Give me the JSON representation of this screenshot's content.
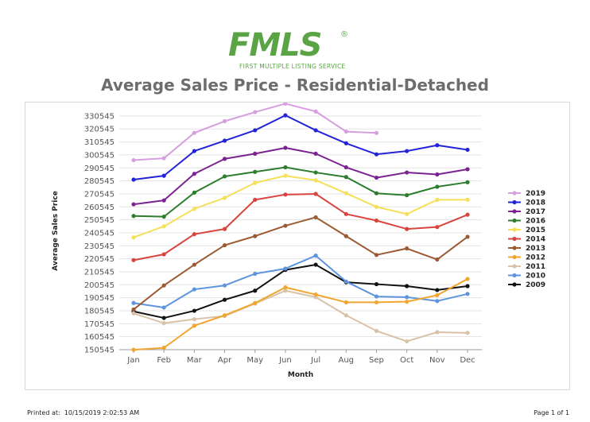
{
  "logo": {
    "text": "FMLS",
    "subtext": "FIRST MULTIPLE LISTING SERVICE",
    "registered": "®",
    "color": "#5ba445"
  },
  "page_title": "Average Sales Price - Residential-Detached",
  "footer": {
    "printed_label": "Printed at:",
    "printed_value": "10/15/2019 2:02:53 AM",
    "page": "Page 1 of 1"
  },
  "chart_data": {
    "type": "line",
    "title": "Average Sales Price - Residential-Detached",
    "xlabel": "Month",
    "ylabel": "Average Sales Price",
    "categories": [
      "Jan",
      "Feb",
      "Mar",
      "Apr",
      "May",
      "Jun",
      "Jul",
      "Aug",
      "Sep",
      "Oct",
      "Nov",
      "Dec"
    ],
    "yticks": [
      150545,
      160545,
      170545,
      180545,
      190545,
      200545,
      210545,
      220545,
      230545,
      240545,
      250545,
      260545,
      270545,
      280545,
      290545,
      300545,
      310545,
      320545,
      330545
    ],
    "ylim": [
      150545,
      333545
    ],
    "grid": true,
    "legend_position": "right",
    "series": [
      {
        "name": "2019",
        "color": "#d79ee0",
        "values": [
          296500,
          298000,
          317500,
          326500,
          333500,
          340000,
          334000,
          318500,
          317500,
          null,
          null,
          null
        ]
      },
      {
        "name": "2018",
        "color": "#2323d8",
        "values": [
          281500,
          284500,
          303500,
          311500,
          319500,
          331000,
          319500,
          309500,
          301000,
          303500,
          308000,
          304500
        ]
      },
      {
        "name": "2017",
        "color": "#7b2491",
        "values": [
          262500,
          265500,
          286000,
          297500,
          301500,
          306000,
          301500,
          291000,
          283000,
          287000,
          285500,
          289500
        ]
      },
      {
        "name": "2016",
        "color": "#2e7d2e",
        "values": [
          253500,
          253000,
          271500,
          284000,
          287500,
          291000,
          287000,
          283500,
          271000,
          269500,
          276000,
          279500
        ]
      },
      {
        "name": "2015",
        "color": "#f6df5a",
        "values": [
          237000,
          245500,
          259000,
          267500,
          279000,
          284500,
          281000,
          271000,
          260500,
          255000,
          266000,
          266000
        ]
      },
      {
        "name": "2014",
        "color": "#d8453e",
        "values": [
          219500,
          224000,
          239500,
          243500,
          266000,
          270000,
          270500,
          255000,
          250000,
          243500,
          245000,
          254500
        ]
      },
      {
        "name": "2013",
        "color": "#9c5a34",
        "values": [
          181500,
          200000,
          216000,
          231000,
          238000,
          246000,
          252500,
          238000,
          223500,
          228500,
          220000,
          237500
        ]
      },
      {
        "name": "2012",
        "color": "#f0a630",
        "values": [
          150500,
          152000,
          169000,
          177000,
          186500,
          198500,
          193000,
          187000,
          187000,
          187500,
          192500,
          205000
        ]
      },
      {
        "name": "2011",
        "color": "#d9c2a8",
        "values": [
          178500,
          171000,
          174000,
          176500,
          186000,
          196000,
          191000,
          177000,
          165000,
          157000,
          164000,
          163500
        ]
      },
      {
        "name": "2010",
        "color": "#5e95de",
        "values": [
          186500,
          183000,
          197000,
          200000,
          209000,
          213000,
          223000,
          203000,
          191500,
          191000,
          188000,
          193500
        ]
      },
      {
        "name": "2009",
        "color": "#111111",
        "values": [
          180000,
          175000,
          180500,
          189000,
          196000,
          212000,
          216000,
          202500,
          201000,
          199500,
          196500,
          199500
        ]
      }
    ]
  }
}
